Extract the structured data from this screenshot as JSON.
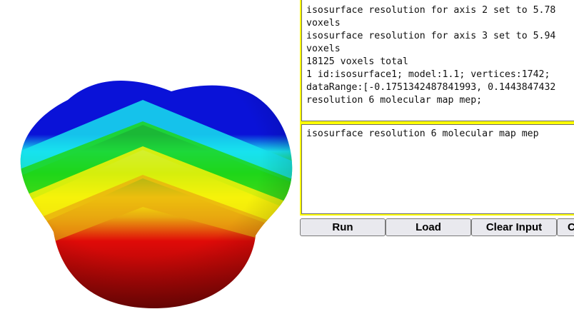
{
  "viewer": {
    "colors": {
      "blue": "#0a12d8",
      "cyan": "#18e2ee",
      "green": "#1fd61a",
      "yellow": "#f6f20a",
      "orange": "#e8a810",
      "red": "#e00a08",
      "dark_red": "#7a0505"
    }
  },
  "output": {
    "lines": [
      "isosurface resolution for axis 2 set to 5.78",
      "voxels",
      "isosurface resolution for axis 3 set to 5.94",
      "voxels",
      "18125 voxels total",
      "1 id:isosurface1; model:1.1; vertices:1742;",
      "dataRange:[-0.1751342487841993, 0.1443847432",
      "resolution 6 molecular map mep;"
    ]
  },
  "input": {
    "value": "isosurface resolution 6 molecular map mep"
  },
  "buttons": {
    "run": "Run",
    "load": "Load",
    "clear_input": "Clear Input",
    "clear_output": "C"
  },
  "theme": {
    "panel_border": "#ffff00",
    "button_bg": "#e9e9ee"
  }
}
